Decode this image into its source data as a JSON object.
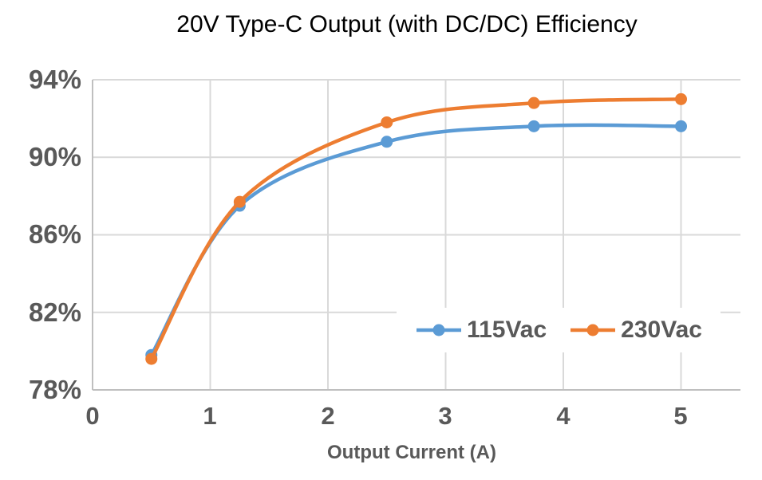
{
  "title": "20V Type-C Output (with DC/DC) Efficiency",
  "colors": {
    "series_115vac": "#5B9BD5",
    "series_230vac": "#ED7D31",
    "gridline": "#D9D9D9",
    "axis_line": "#BFBFBF",
    "tick_text": "#595959",
    "title_text": "#000000",
    "background": "#FFFFFF"
  },
  "chart_data": {
    "type": "line",
    "title": "20V Type-C Output (with DC/DC) Efficiency",
    "xlabel": "Output Current (A)",
    "ylabel": "",
    "x": [
      0.5,
      1.25,
      2.5,
      3.75,
      5
    ],
    "series": [
      {
        "name": "115Vac",
        "color": "#5B9BD5",
        "values": [
          79.8,
          87.5,
          90.8,
          91.6,
          91.6
        ]
      },
      {
        "name": "230Vac",
        "color": "#ED7D31",
        "values": [
          79.6,
          87.7,
          91.8,
          92.8,
          93.0
        ]
      }
    ],
    "xlim": [
      0,
      5.5
    ],
    "ylim": [
      78,
      94
    ],
    "xticks": [
      0,
      1,
      2,
      3,
      4,
      5
    ],
    "yticks": [
      78,
      82,
      86,
      90,
      94
    ],
    "xtick_labels": [
      "0",
      "1",
      "2",
      "3",
      "4",
      "5"
    ],
    "ytick_labels_top_to_bottom": [
      "94%",
      "90%",
      "86%",
      "82%",
      "78%"
    ],
    "grid": true,
    "smooth_lines": true,
    "marker": "circle",
    "legend_position": "inside-lower-right",
    "legend": [
      "115Vac",
      "230Vac"
    ]
  }
}
